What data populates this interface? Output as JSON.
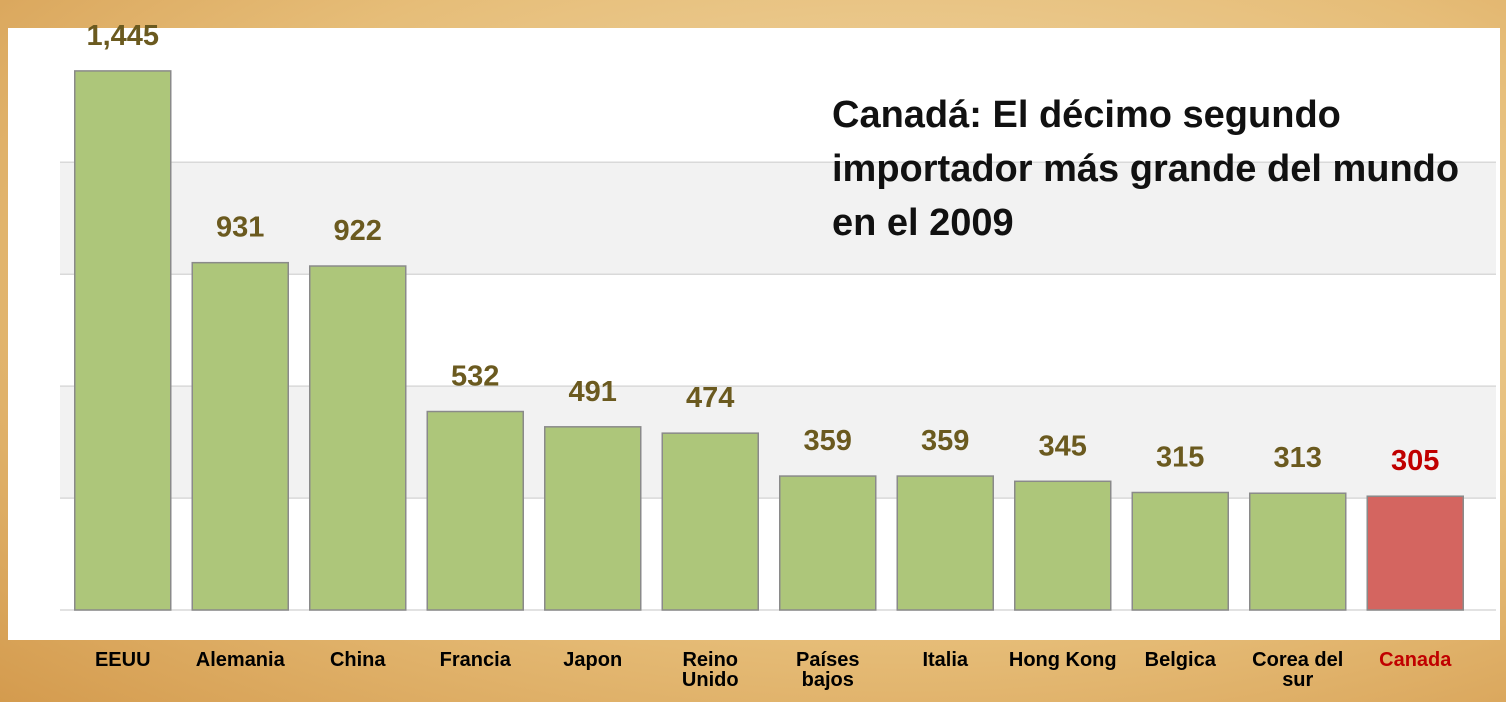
{
  "chart_data": {
    "type": "bar",
    "annotation": "Canadá: El décimo segundo importador más grande del mundo en el 2009",
    "categories": [
      "EEUU",
      "Alemania",
      "China",
      "Francia",
      "Japon",
      "Reino Unido",
      "Países bajos",
      "Italia",
      "Hong Kong",
      "Belgica",
      "Corea del sur",
      "Canada"
    ],
    "values": [
      1445,
      931,
      922,
      532,
      491,
      474,
      359,
      359,
      345,
      315,
      313,
      305
    ],
    "value_labels": [
      "1,445",
      "931",
      "922",
      "532",
      "491",
      "474",
      "359",
      "359",
      "345",
      "315",
      "313",
      "305"
    ],
    "colors": [
      "#adc67a",
      "#adc67a",
      "#adc67a",
      "#adc67a",
      "#adc67a",
      "#adc67a",
      "#adc67a",
      "#adc67a",
      "#adc67a",
      "#adc67a",
      "#adc67a",
      "#d46560"
    ],
    "label_colors": [
      "#6b5a1f",
      "#6b5a1f",
      "#6b5a1f",
      "#6b5a1f",
      "#6b5a1f",
      "#6b5a1f",
      "#6b5a1f",
      "#6b5a1f",
      "#6b5a1f",
      "#6b5a1f",
      "#6b5a1f",
      "#c00000"
    ],
    "category_colors": [
      "#000000",
      "#000000",
      "#000000",
      "#000000",
      "#000000",
      "#000000",
      "#000000",
      "#000000",
      "#000000",
      "#000000",
      "#000000",
      "#c00000"
    ],
    "ylim": [
      0,
      1560
    ],
    "yticks": [
      0,
      300,
      600,
      900,
      1200
    ],
    "grid": true
  }
}
